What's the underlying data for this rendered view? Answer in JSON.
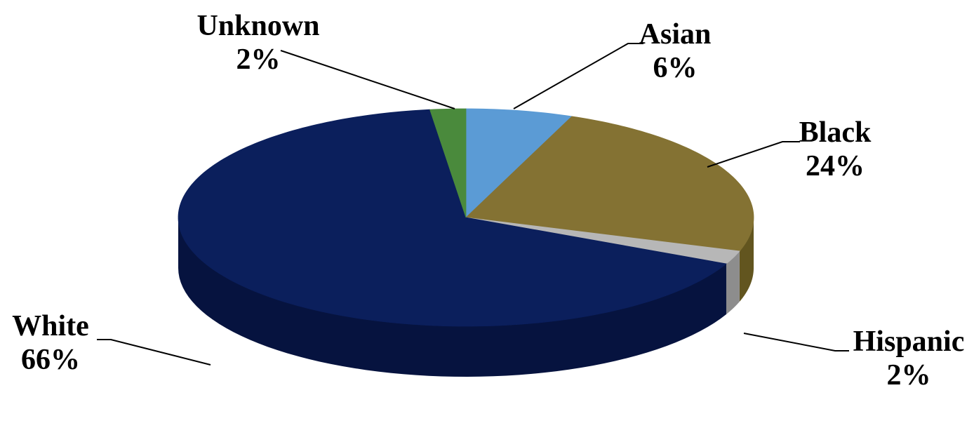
{
  "chart_data": {
    "type": "pie",
    "title": "",
    "three_d": true,
    "slices": [
      {
        "label": "Asian",
        "value": 6,
        "value_label": "6%",
        "color": "#5b9bd5",
        "side_color": "#3f7bb3"
      },
      {
        "label": "Black",
        "value": 24,
        "value_label": "24%",
        "color": "#847233",
        "side_color": "#62551f"
      },
      {
        "label": "Hispanic",
        "value": 2,
        "value_label": "2%",
        "color": "#b7b7b7",
        "side_color": "#8d8d8d"
      },
      {
        "label": "White",
        "value": 66,
        "value_label": "66%",
        "color": "#0b1f5c",
        "side_color": "#06133f"
      },
      {
        "label": "Unknown",
        "value": 2,
        "value_label": "2%",
        "color": "#4a8a3c",
        "side_color": "#33652a"
      }
    ]
  }
}
